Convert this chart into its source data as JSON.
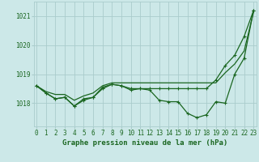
{
  "background_color": "#cce8e8",
  "grid_color": "#aacccc",
  "line_color": "#1a6620",
  "ylabel_values": [
    1018,
    1019,
    1020,
    1021
  ],
  "xlim": [
    -0.3,
    23.3
  ],
  "ylim": [
    1017.2,
    1021.5
  ],
  "xlabel": "Graphe pression niveau de la mer (hPa)",
  "xtick_labels": [
    "0",
    "1",
    "2",
    "3",
    "4",
    "5",
    "6",
    "7",
    "8",
    "9",
    "10",
    "11",
    "12",
    "13",
    "14",
    "15",
    "16",
    "17",
    "18",
    "19",
    "20",
    "21",
    "22",
    "23"
  ],
  "series": [
    {
      "y": [
        1018.6,
        1018.4,
        1018.3,
        1018.3,
        1018.1,
        1018.25,
        1018.35,
        1018.6,
        1018.7,
        1018.7,
        1018.7,
        1018.7,
        1018.7,
        1018.7,
        1018.7,
        1018.7,
        1018.7,
        1018.7,
        1018.7,
        1018.7,
        1019.05,
        1019.35,
        1019.8,
        1021.15
      ],
      "has_marker": false
    },
    {
      "y": [
        1018.6,
        1018.35,
        1018.15,
        1018.2,
        1017.9,
        1018.1,
        1018.2,
        1018.55,
        1018.65,
        1018.6,
        1018.45,
        1018.5,
        1018.45,
        1018.1,
        1018.05,
        1018.05,
        1017.65,
        1017.5,
        1017.6,
        1018.05,
        1018.0,
        1019.0,
        1019.55,
        1021.2
      ],
      "has_marker": true
    },
    {
      "y": [
        1018.6,
        1018.35,
        1018.15,
        1018.2,
        1017.9,
        1018.15,
        1018.2,
        1018.5,
        1018.65,
        1018.6,
        1018.5,
        1018.5,
        1018.5,
        1018.5,
        1018.5,
        1018.5,
        1018.5,
        1018.5,
        1018.5,
        1018.8,
        1019.3,
        1019.65,
        1020.3,
        1021.2
      ],
      "has_marker": true
    }
  ],
  "marker": "+",
  "marker_size": 3,
  "linewidth": 0.9,
  "axis_fontsize": 6.5,
  "tick_fontsize": 5.5
}
